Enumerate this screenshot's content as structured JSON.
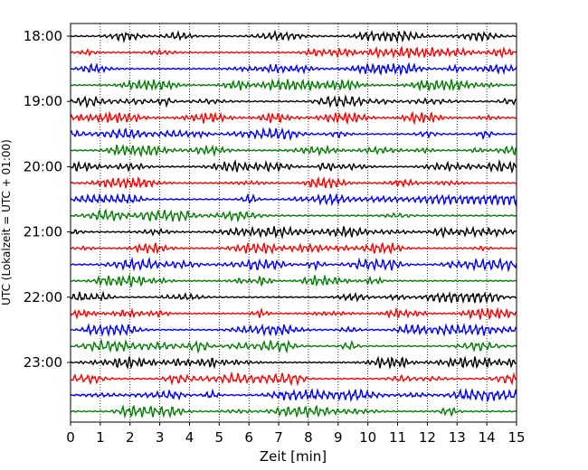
{
  "chart_data": {
    "type": "line",
    "subtype": "seismogram-helicorder",
    "title": "",
    "xlabel": "Zeit  [min]",
    "ylabel": "UTC (Lokalzeit = UTC + 01:00)",
    "xlim": [
      0,
      15
    ],
    "x_ticks": [
      0,
      1,
      2,
      3,
      4,
      5,
      6,
      7,
      8,
      9,
      10,
      11,
      12,
      13,
      14,
      15
    ],
    "x_tick_labels": [
      "0",
      "1",
      "2",
      "3",
      "4",
      "5",
      "6",
      "7",
      "8",
      "9",
      "10",
      "11",
      "12",
      "13",
      "14",
      "15"
    ],
    "row_interval_min": 15,
    "start_time": "18:00",
    "row_count": 24,
    "y_tick_labels": [
      "18:00",
      "19:00",
      "20:00",
      "21:00",
      "22:00",
      "23:00"
    ],
    "y_tick_rows": [
      0,
      4,
      8,
      12,
      16,
      20
    ],
    "trace_colors": [
      "#000000",
      "#ff0000",
      "#0000ff",
      "#007f00"
    ],
    "grid": {
      "vertical": true,
      "style": "dotted"
    },
    "legend": "none"
  }
}
